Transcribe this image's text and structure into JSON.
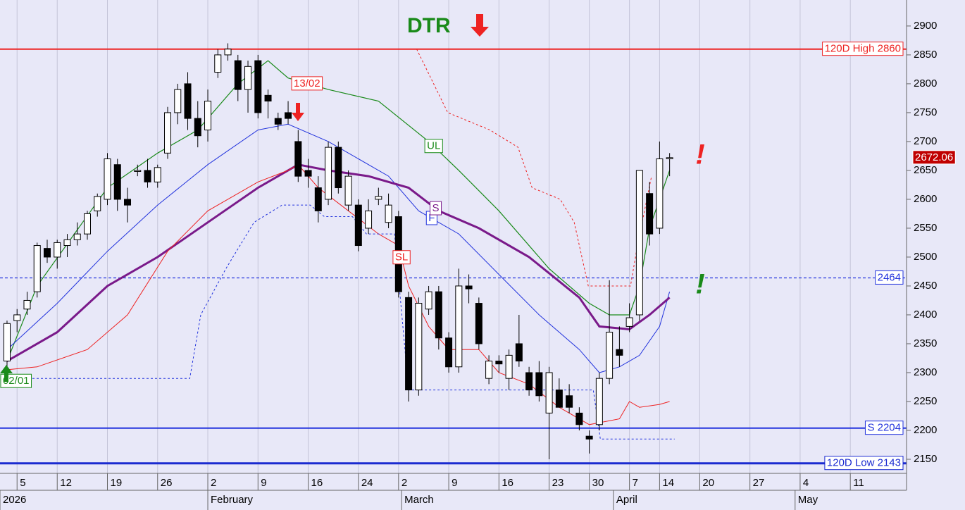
{
  "chart_data": {
    "type": "candlestick",
    "title": "DTR",
    "xlim": [
      -0.7,
      89.6
    ],
    "ylim": [
      2125.6,
      2945
    ],
    "yticks": [
      2150,
      2200,
      2250,
      2300,
      2350,
      2400,
      2450,
      2500,
      2550,
      2600,
      2650,
      2700,
      2750,
      2800,
      2850,
      2900
    ],
    "xticks": [
      {
        "value": 1,
        "label": "5"
      },
      {
        "value": 5,
        "label": "12"
      },
      {
        "value": 10,
        "label": "19"
      },
      {
        "value": 15,
        "label": "26"
      },
      {
        "value": 20,
        "label": "2"
      },
      {
        "value": 25,
        "label": "9"
      },
      {
        "value": 30,
        "label": "16"
      },
      {
        "value": 35,
        "label": "24"
      },
      {
        "value": 39,
        "label": "2"
      },
      {
        "value": 44,
        "label": "9"
      },
      {
        "value": 49,
        "label": "16"
      },
      {
        "value": 54,
        "label": "23"
      },
      {
        "value": 58,
        "label": "30"
      },
      {
        "value": 62,
        "label": "7"
      },
      {
        "value": 65,
        "label": "14"
      },
      {
        "value": 69,
        "label": "20"
      },
      {
        "value": 74,
        "label": "27"
      },
      {
        "value": 79,
        "label": "4"
      },
      {
        "value": 84,
        "label": "11"
      }
    ],
    "month_labels": [
      {
        "value": -0.7,
        "label": "2026"
      },
      {
        "value": 20,
        "label": "February"
      },
      {
        "value": 39.3,
        "label": "March"
      },
      {
        "value": 60.4,
        "label": "April"
      },
      {
        "value": 78.5,
        "label": "May"
      }
    ],
    "grid": true,
    "candles": {
      "x": [
        0,
        1,
        2,
        3,
        4,
        5,
        6,
        7,
        8,
        9,
        10,
        11,
        12,
        13,
        14,
        15,
        16,
        17,
        18,
        19,
        20,
        21,
        22,
        23,
        24,
        25,
        26,
        27,
        28,
        29,
        30,
        31,
        32,
        33,
        34,
        35,
        36,
        37,
        38,
        39,
        40,
        41,
        42,
        43,
        44,
        45,
        46,
        47,
        48,
        49,
        50,
        51,
        52,
        53,
        54,
        55,
        56,
        57,
        58,
        59,
        60,
        61,
        62,
        63,
        64,
        65,
        66
      ],
      "open": [
        2320,
        2390,
        2410,
        2440,
        2515,
        2500,
        2520,
        2530,
        2540,
        2580,
        2600,
        2660,
        2600,
        2650,
        2650,
        2630,
        2680,
        2750,
        2800,
        2740,
        2720,
        2820,
        2850,
        2840,
        2790,
        2840,
        2780,
        2740,
        2750,
        2700,
        2650,
        2620,
        2600,
        2690,
        2590,
        2590,
        2550,
        2600,
        2560,
        2570,
        2430,
        2270,
        2410,
        2440,
        2360,
        2310,
        2450,
        2420,
        2290,
        2320,
        2290,
        2350,
        2300,
        2300,
        2230,
        2270,
        2260,
        2230,
        2190,
        2210,
        2290,
        2340,
        2380,
        2400,
        2610,
        2550,
        2672
      ],
      "high": [
        2390,
        2410,
        2440,
        2525,
        2530,
        2530,
        2540,
        2560,
        2580,
        2610,
        2680,
        2670,
        2620,
        2660,
        2670,
        2660,
        2760,
        2800,
        2820,
        2770,
        2790,
        2860,
        2870,
        2850,
        2840,
        2850,
        2790,
        2750,
        2770,
        2720,
        2670,
        2640,
        2700,
        2700,
        2650,
        2600,
        2600,
        2620,
        2610,
        2580,
        2440,
        2430,
        2450,
        2450,
        2370,
        2480,
        2470,
        2430,
        2330,
        2330,
        2340,
        2400,
        2310,
        2320,
        2310,
        2290,
        2280,
        2240,
        2200,
        2300,
        2460,
        2380,
        2420,
        2650,
        2630,
        2700,
        2680
      ],
      "low": [
        2310,
        2370,
        2400,
        2430,
        2490,
        2480,
        2500,
        2520,
        2530,
        2570,
        2590,
        2580,
        2560,
        2640,
        2620,
        2620,
        2670,
        2730,
        2720,
        2690,
        2700,
        2810,
        2840,
        2770,
        2750,
        2740,
        2740,
        2720,
        2730,
        2630,
        2620,
        2560,
        2590,
        2610,
        2580,
        2510,
        2540,
        2590,
        2550,
        2430,
        2250,
        2260,
        2400,
        2340,
        2300,
        2300,
        2420,
        2340,
        2280,
        2300,
        2270,
        2310,
        2260,
        2250,
        2150,
        2240,
        2230,
        2200,
        2160,
        2200,
        2280,
        2310,
        2370,
        2390,
        2520,
        2540,
        2640
      ],
      "close": [
        2385,
        2400,
        2425,
        2520,
        2500,
        2525,
        2530,
        2540,
        2575,
        2605,
        2670,
        2600,
        2590,
        2650,
        2630,
        2655,
        2750,
        2790,
        2740,
        2710,
        2770,
        2850,
        2860,
        2790,
        2830,
        2750,
        2770,
        2730,
        2740,
        2640,
        2640,
        2580,
        2690,
        2620,
        2640,
        2520,
        2580,
        2605,
        2590,
        2440,
        2270,
        2420,
        2440,
        2360,
        2310,
        2450,
        2445,
        2350,
        2320,
        2315,
        2330,
        2320,
        2270,
        2260,
        2300,
        2240,
        2240,
        2210,
        2185,
        2290,
        2370,
        2330,
        2395,
        2650,
        2540,
        2670,
        2672.06
      ]
    },
    "series": [
      {
        "name": "UL",
        "color": "#1a8a1a",
        "style": "solid",
        "width": 1.2,
        "x": [
          0,
          3,
          10,
          15,
          19,
          23,
          26,
          28,
          32,
          37,
          42,
          45,
          49,
          54,
          58,
          60,
          62,
          63,
          64,
          66
        ],
        "values": [
          2320,
          2450,
          2620,
          2680,
          2720,
          2800,
          2840,
          2810,
          2790,
          2770,
          2700,
          2650,
          2580,
          2480,
          2420,
          2400,
          2400,
          2450,
          2550,
          2650
        ]
      },
      {
        "name": "F",
        "color": "#2233dd",
        "style": "solid",
        "width": 1,
        "x": [
          0,
          5,
          10,
          15,
          20,
          25,
          28,
          32,
          34,
          38,
          41,
          45,
          49,
          53,
          57,
          59,
          61,
          63,
          65,
          66
        ],
        "values": [
          2340,
          2420,
          2510,
          2590,
          2660,
          2720,
          2730,
          2700,
          2680,
          2640,
          2580,
          2540,
          2470,
          2400,
          2340,
          2300,
          2310,
          2330,
          2380,
          2440
        ]
      },
      {
        "name": "S",
        "color": "#7a1a8a",
        "style": "solid",
        "width": 3,
        "x": [
          0,
          5,
          10,
          15,
          20,
          25,
          29,
          32,
          36,
          40,
          43,
          47,
          52,
          57,
          59,
          62,
          64,
          66
        ],
        "values": [
          2320,
          2370,
          2450,
          2500,
          2560,
          2620,
          2660,
          2650,
          2640,
          2620,
          2580,
          2550,
          2500,
          2430,
          2380,
          2375,
          2400,
          2430
        ]
      },
      {
        "name": "SL",
        "color": "#ee2222",
        "style": "solid",
        "width": 1,
        "x": [
          0,
          3,
          8,
          12,
          16,
          20,
          25,
          28,
          29,
          31,
          34,
          37,
          39,
          40,
          42,
          44,
          47,
          49,
          52,
          55,
          58,
          61,
          62,
          63,
          65,
          66
        ],
        "values": [
          2305,
          2310,
          2340,
          2400,
          2510,
          2580,
          2630,
          2650,
          2660,
          2620,
          2580,
          2540,
          2520,
          2450,
          2380,
          2340,
          2340,
          2300,
          2280,
          2240,
          2210,
          2220,
          2250,
          2240,
          2245,
          2250
        ]
      },
      {
        "name": null,
        "color": "#ee2222",
        "style": "dotted",
        "width": 1,
        "x": [
          40.8,
          43.9,
          48.1,
          50.9,
          52.3,
          55.1,
          56.5,
          57.9,
          60,
          62.1,
          62.8,
          64.2
        ],
        "values": [
          2860,
          2750,
          2720,
          2690,
          2620,
          2600,
          2560,
          2450,
          2450,
          2450,
          2520,
          2640
        ]
      },
      {
        "name": null,
        "color": "#2233dd",
        "style": "dotted",
        "width": 1,
        "x": [
          0,
          18.2,
          19.3,
          21.8,
          24.6,
          27.4,
          30.2,
          31.6,
          34.4,
          35.8,
          38.6,
          40,
          58.4,
          59.1,
          66.5
        ],
        "values": [
          2290,
          2290,
          2400,
          2480,
          2560,
          2590,
          2590,
          2570,
          2570,
          2540,
          2540,
          2270,
          2270,
          2185,
          2185
        ]
      }
    ],
    "levels": [
      {
        "value": 2860,
        "label": "120D High 2860",
        "color": "#ee2222",
        "style": "solid"
      },
      {
        "value": 2464,
        "color": "#2233dd",
        "style": "dashed"
      },
      {
        "value": 2204,
        "label": "S 2204",
        "color": "#2233dd",
        "style": "solid"
      },
      {
        "value": 2143,
        "label": "120D Low 2143",
        "color": "#1a2ad0",
        "style": "thick"
      }
    ],
    "annotations": [
      {
        "text": "13/02",
        "x": 28,
        "y": 2800,
        "color": "#ee2222"
      },
      {
        "text": "02/01",
        "x": 0,
        "y": 2285,
        "color": "#1a8a1a"
      }
    ]
  }
}
